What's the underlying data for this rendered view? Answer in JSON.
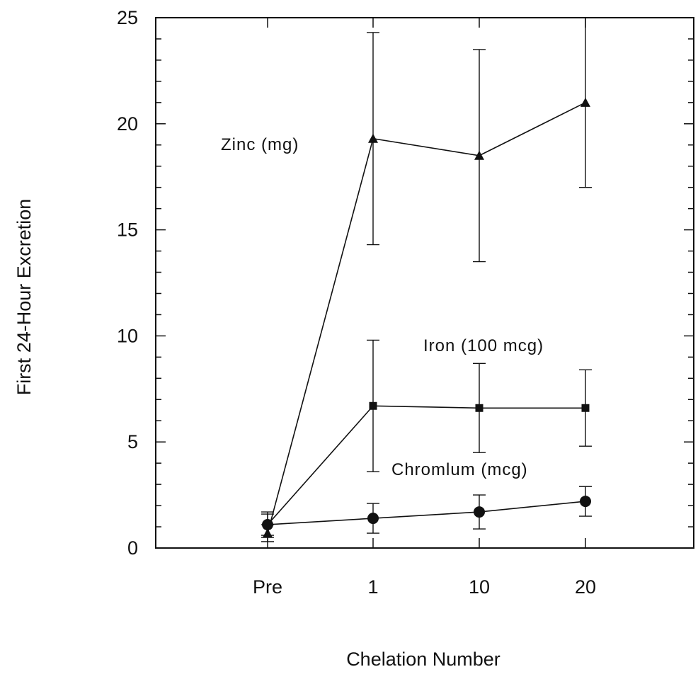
{
  "chart_data": {
    "type": "line",
    "title": "",
    "xlabel": "Chelation Number",
    "ylabel": "First 24-Hour Excretion",
    "categories": [
      "Pre",
      "1",
      "10",
      "20"
    ],
    "ylim": [
      0,
      25
    ],
    "y_ticks": [
      0,
      5,
      10,
      15,
      20,
      25
    ],
    "grid": false,
    "legend": "none",
    "series": [
      {
        "name": "Zinc (mg)",
        "marker": "triangle",
        "values": [
          0.7,
          19.3,
          18.5,
          21.0
        ],
        "error": [
          0.4,
          5.0,
          5.0,
          4.0
        ]
      },
      {
        "name": "Iron (100 mcg)",
        "marker": "square",
        "values": [
          1.1,
          6.7,
          6.6,
          6.6
        ],
        "error": [
          0.5,
          3.1,
          2.1,
          1.8
        ]
      },
      {
        "name": "Chromlum (mcg)",
        "marker": "circle",
        "values": [
          1.1,
          1.4,
          1.7,
          2.2
        ],
        "error": [
          0.6,
          0.7,
          0.8,
          0.7
        ]
      }
    ]
  }
}
